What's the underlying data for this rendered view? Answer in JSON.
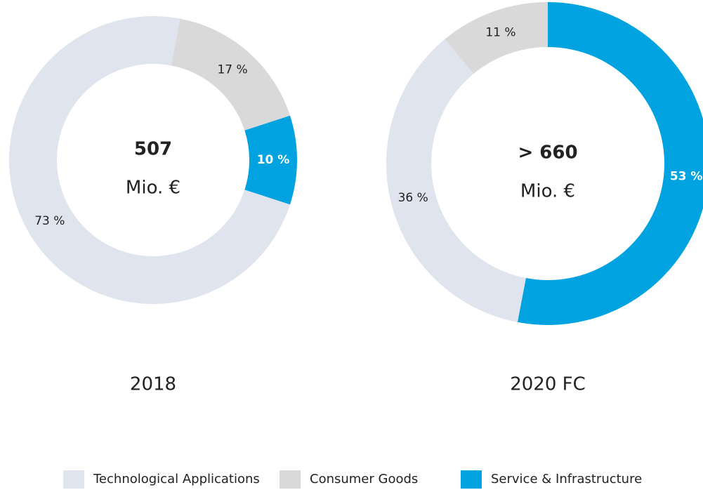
{
  "chart_data": [
    {
      "type": "donut",
      "center_value": "507",
      "center_unit": "Mio. €",
      "label": "2018",
      "categories": [
        "Technological Applications",
        "Consumer Goods",
        "Service & Infrastructure"
      ],
      "values": [
        73,
        17,
        10
      ],
      "value_labels": [
        "73 %",
        "17 %",
        "10 %"
      ],
      "colors": [
        "#dfe4ee",
        "#d9d9d9",
        "#00a3e0"
      ]
    },
    {
      "type": "donut",
      "center_value": "> 660",
      "center_unit": "Mio. €",
      "label": "2020 FC",
      "categories": [
        "Technological Applications",
        "Consumer Goods",
        "Service & Infrastructure"
      ],
      "values": [
        36,
        11,
        53
      ],
      "value_labels": [
        "36 %",
        "11 %",
        "53 %"
      ],
      "colors": [
        "#dfe4ee",
        "#d9d9d9",
        "#00a3e0"
      ]
    }
  ]
}
